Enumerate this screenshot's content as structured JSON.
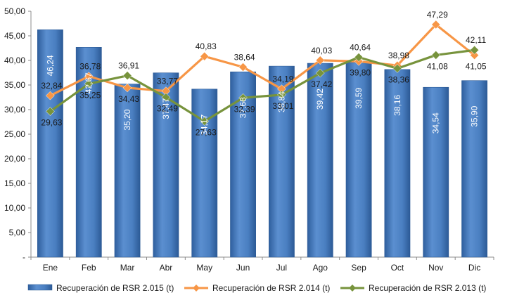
{
  "chart_data": {
    "type": "bar",
    "categories": [
      "Ene",
      "Feb",
      "Mar",
      "Abr",
      "May",
      "Jun",
      "Jul",
      "Ago",
      "Sep",
      "Oct",
      "Nov",
      "Dic"
    ],
    "ylim": [
      0,
      50
    ],
    "yticks": [
      "-",
      "5,00",
      "10,00",
      "15,00",
      "20,00",
      "25,00",
      "30,00",
      "35,00",
      "40,00",
      "45,00",
      "50,00"
    ],
    "grid": false,
    "legend_position": "bottom",
    "series": [
      {
        "name": "Recuperación de RSR 2.015 (t)",
        "type": "bar",
        "color": "#4a7fc1",
        "values": [
          46.24,
          42.67,
          35.2,
          37.47,
          34.17,
          37.68,
          38.84,
          39.42,
          39.59,
          38.16,
          34.54,
          35.9
        ],
        "labels": [
          "46,24",
          "42,67",
          "35,20",
          "37,47",
          "34,17",
          "37,68",
          "38,84",
          "39,42",
          "39,59",
          "38,16",
          "34,54",
          "35,90"
        ]
      },
      {
        "name": "Recuperación de RSR 2.014 (t)",
        "type": "line",
        "color": "#f79646",
        "values": [
          32.84,
          36.78,
          34.43,
          33.77,
          40.83,
          38.64,
          34.19,
          40.03,
          39.8,
          38.98,
          47.29,
          41.05
        ],
        "labels": [
          "32,84",
          "36,78",
          "34,43",
          "33,77",
          "40,83",
          "38,64",
          "34,19",
          "40,03",
          "39,80",
          "38,98",
          "47,29",
          "41,05"
        ]
      },
      {
        "name": "Recuperación de RSR 2.013 (t)",
        "type": "line",
        "color": "#77933c",
        "values": [
          29.63,
          35.25,
          36.91,
          32.49,
          27.63,
          32.39,
          33.01,
          37.42,
          40.64,
          38.36,
          41.08,
          42.11
        ],
        "labels": [
          "29,63",
          "35,25",
          "36,91",
          "32,49",
          "27,63",
          "32,39",
          "33,01",
          "37,42",
          "40,64",
          "38,36",
          "41,08",
          "42,11"
        ]
      }
    ]
  }
}
